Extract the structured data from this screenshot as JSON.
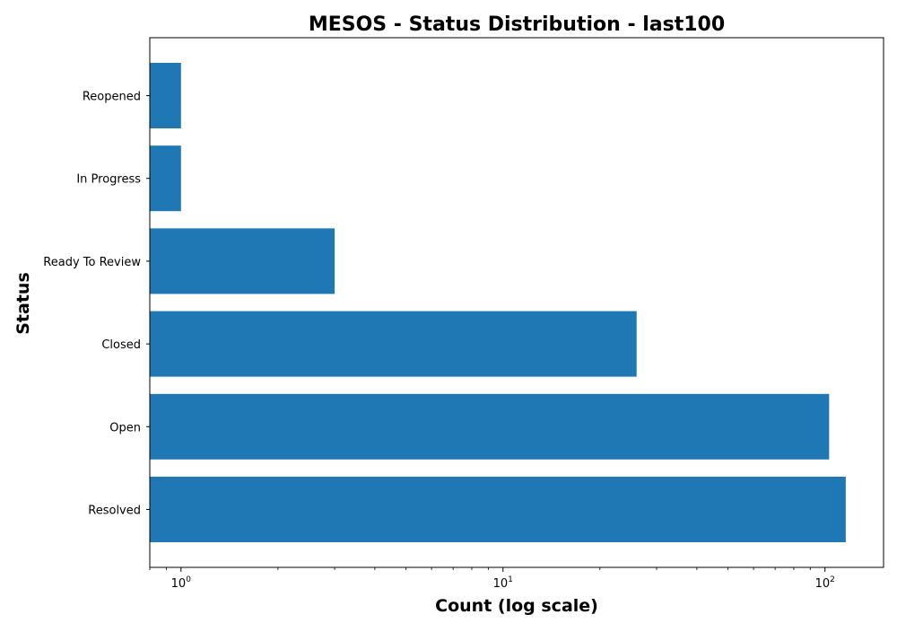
{
  "chart_data": {
    "type": "bar",
    "orientation": "horizontal",
    "title": "MESOS - Status Distribution - last100",
    "xlabel": "Count (log scale)",
    "ylabel": "Status",
    "xscale": "log",
    "xlim": [
      0.8,
      152
    ],
    "categories": [
      "Resolved",
      "Open",
      "Closed",
      "Ready To Review",
      "In Progress",
      "Reopened"
    ],
    "values": [
      116,
      103,
      26,
      3,
      1,
      1
    ],
    "x_ticks": [
      {
        "value": 1,
        "base": "10",
        "exp": "0"
      },
      {
        "value": 10,
        "base": "10",
        "exp": "1"
      },
      {
        "value": 100,
        "base": "10",
        "exp": "2"
      }
    ],
    "bar_color": "#1f77b4",
    "grid": false,
    "legend": "none"
  }
}
